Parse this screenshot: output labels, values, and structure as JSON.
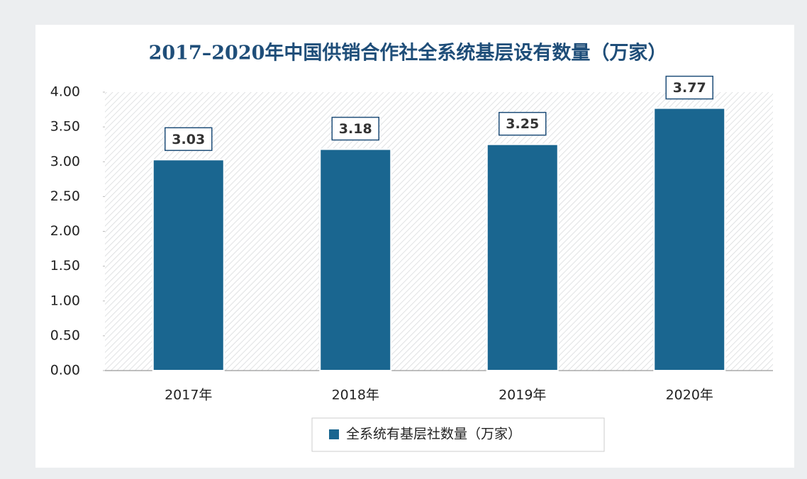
{
  "chart_data": {
    "type": "bar",
    "title": "2017–2020年中国供销合作社全系统基层设有数量（万家）",
    "categories": [
      "2017年",
      "2018年",
      "2019年",
      "2020年"
    ],
    "series": [
      {
        "name": "全系统有基层社数量（万家）",
        "color": "#1a6690",
        "values": [
          3.03,
          3.18,
          3.25,
          3.77
        ]
      }
    ],
    "ylim": [
      0,
      4
    ],
    "yticks": [
      {
        "value": 0,
        "label": "0.00"
      },
      {
        "value": 0.5,
        "label": "0.50"
      },
      {
        "value": 1,
        "label": "1.00"
      },
      {
        "value": 1.5,
        "label": "1.50"
      },
      {
        "value": 2,
        "label": "2.00"
      },
      {
        "value": 2.5,
        "label": "2.50"
      },
      {
        "value": 3,
        "label": "3.00"
      },
      {
        "value": 3.5,
        "label": "3.50"
      },
      {
        "value": 4,
        "label": "4.00"
      }
    ],
    "legend": "bottom"
  }
}
